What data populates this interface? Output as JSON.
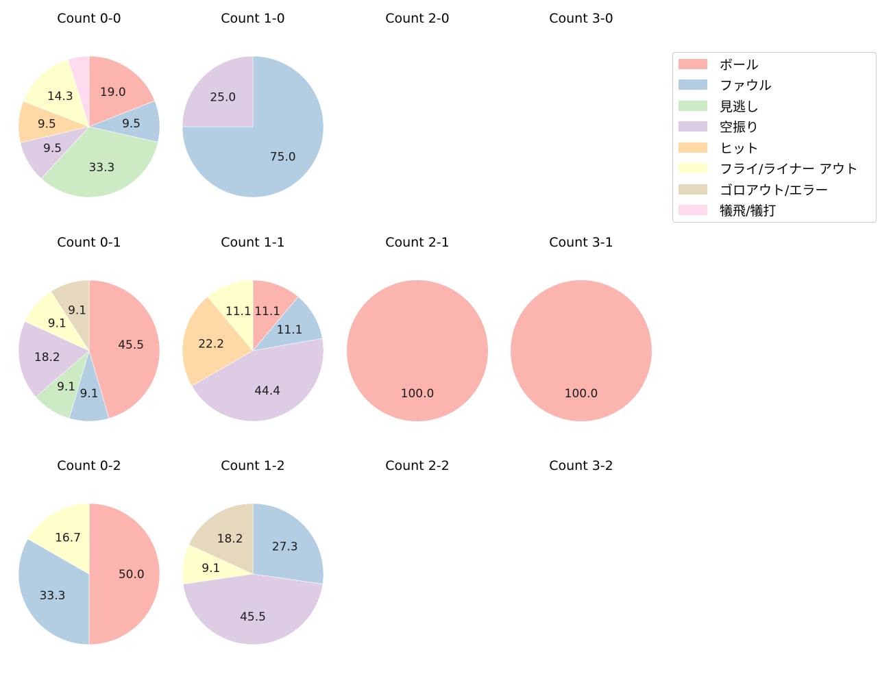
{
  "chart_data": {
    "type": "pie",
    "legend": {
      "position": "upper right",
      "entries": [
        {
          "label": "ボール",
          "color": "#fbb4ae"
        },
        {
          "label": "ファウル",
          "color": "#b3cde3"
        },
        {
          "label": "見逃し",
          "color": "#ccebc5"
        },
        {
          "label": "空振り",
          "color": "#decbe4"
        },
        {
          "label": "ヒット",
          "color": "#fed9a6"
        },
        {
          "label": "フライ/ライナー アウト",
          "color": "#ffffcc"
        },
        {
          "label": "ゴロアウト/エラー",
          "color": "#e5d8bd"
        },
        {
          "label": "犠飛/犠打",
          "color": "#fddaec"
        }
      ]
    },
    "panels": [
      {
        "title": "Count 0-0",
        "row": 0,
        "col": 0,
        "slices": [
          {
            "category": "ボール",
            "value": 19.0,
            "label": "19.0"
          },
          {
            "category": "ファウル",
            "value": 9.5,
            "label": "9.5"
          },
          {
            "category": "見逃し",
            "value": 33.3,
            "label": "33.3"
          },
          {
            "category": "空振り",
            "value": 9.5,
            "label": "9.5"
          },
          {
            "category": "ヒット",
            "value": 9.5,
            "label": "9.5"
          },
          {
            "category": "フライ/ライナー アウト",
            "value": 14.3,
            "label": "14.3"
          },
          {
            "category": "犠飛/犠打",
            "value": 4.8,
            "label": ""
          }
        ]
      },
      {
        "title": "Count 1-0",
        "row": 0,
        "col": 1,
        "slices": [
          {
            "category": "ファウル",
            "value": 75.0,
            "label": "75.0"
          },
          {
            "category": "空振り",
            "value": 25.0,
            "label": "25.0"
          }
        ]
      },
      {
        "title": "Count 2-0",
        "row": 0,
        "col": 2,
        "slices": []
      },
      {
        "title": "Count 3-0",
        "row": 0,
        "col": 3,
        "slices": []
      },
      {
        "title": "Count 0-1",
        "row": 1,
        "col": 0,
        "slices": [
          {
            "category": "ボール",
            "value": 45.5,
            "label": "45.5"
          },
          {
            "category": "ファウル",
            "value": 9.1,
            "label": "9.1"
          },
          {
            "category": "見逃し",
            "value": 9.1,
            "label": "9.1"
          },
          {
            "category": "空振り",
            "value": 18.2,
            "label": "18.2"
          },
          {
            "category": "フライ/ライナー アウト",
            "value": 9.1,
            "label": "9.1"
          },
          {
            "category": "ゴロアウト/エラー",
            "value": 9.1,
            "label": "9.1"
          }
        ]
      },
      {
        "title": "Count 1-1",
        "row": 1,
        "col": 1,
        "slices": [
          {
            "category": "ボール",
            "value": 11.1,
            "label": "11.1"
          },
          {
            "category": "ファウル",
            "value": 11.1,
            "label": "11.1"
          },
          {
            "category": "空振り",
            "value": 44.4,
            "label": "44.4"
          },
          {
            "category": "ヒット",
            "value": 22.2,
            "label": "22.2"
          },
          {
            "category": "フライ/ライナー アウト",
            "value": 11.1,
            "label": "11.1"
          }
        ]
      },
      {
        "title": "Count 2-1",
        "row": 1,
        "col": 2,
        "slices": [
          {
            "category": "ボール",
            "value": 100.0,
            "label": "100.0"
          }
        ]
      },
      {
        "title": "Count 3-1",
        "row": 1,
        "col": 3,
        "slices": [
          {
            "category": "ボール",
            "value": 100.0,
            "label": "100.0"
          }
        ]
      },
      {
        "title": "Count 0-2",
        "row": 2,
        "col": 0,
        "slices": [
          {
            "category": "ボール",
            "value": 50.0,
            "label": "50.0"
          },
          {
            "category": "ファウル",
            "value": 33.3,
            "label": "33.3"
          },
          {
            "category": "フライ/ライナー アウト",
            "value": 16.7,
            "label": "16.7"
          }
        ]
      },
      {
        "title": "Count 1-2",
        "row": 2,
        "col": 1,
        "slices": [
          {
            "category": "ファウル",
            "value": 27.3,
            "label": "27.3"
          },
          {
            "category": "空振り",
            "value": 45.5,
            "label": "45.5"
          },
          {
            "category": "フライ/ライナー アウト",
            "value": 9.1,
            "label": "9.1"
          },
          {
            "category": "ゴロアウト/エラー",
            "value": 18.2,
            "label": "18.2"
          }
        ]
      },
      {
        "title": "Count 2-2",
        "row": 2,
        "col": 2,
        "slices": []
      },
      {
        "title": "Count 3-2",
        "row": 2,
        "col": 3,
        "slices": []
      }
    ]
  }
}
